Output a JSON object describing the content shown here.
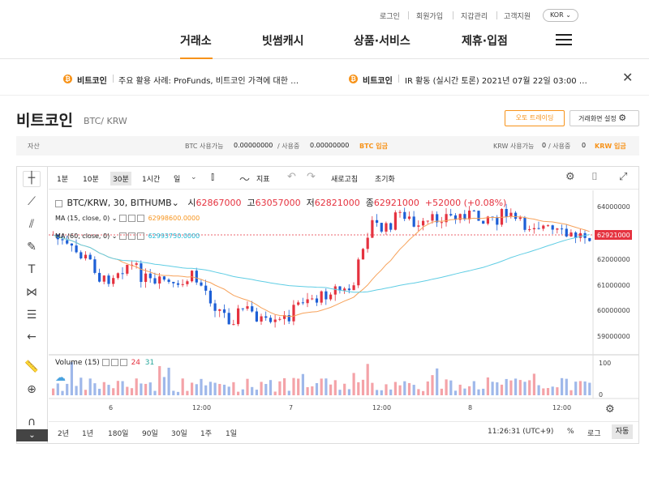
{
  "util_links": [
    "로그인",
    "회원가입",
    "지갑관리",
    "고객지원"
  ],
  "lang": "KOR",
  "nav": [
    "거래소",
    "빗썸캐시",
    "상품·서비스",
    "제휴·입점"
  ],
  "ticker": [
    {
      "coin": "비트코인",
      "text": "주요 활용 사례: ProFunds, 비트코인 가격에 대한 …"
    },
    {
      "coin": "비트코인",
      "text": "IR 활동 (실시간 토론) 2021년 07월 22일 03:00 …"
    }
  ],
  "title": "비트코인",
  "pair": "BTC/ KRW",
  "auto_trading": "오토 트레이딩",
  "screen_settings": "거래화면 설정",
  "assets": {
    "label": "자산",
    "btc_avail_label": "BTC 사용가능",
    "btc_avail": "0.00000000",
    "btc_used_label": "/ 사용중",
    "btc_used": "0.00000000",
    "btc_deposit": "BTC 입금",
    "krw_avail_label": "KRW 사용가능",
    "krw_avail": "0",
    "krw_used_label": "/ 사용중",
    "krw_used": "0",
    "krw_deposit": "KRW 입금"
  },
  "timeframes": [
    "1분",
    "10분",
    "30분",
    "1시간",
    "일"
  ],
  "active_timeframe": "30분",
  "toolbar": {
    "indicator": "지표",
    "refresh": "새로고침",
    "reset": "초기화"
  },
  "legend": {
    "symbol": "BTC/KRW, 30, BITHUMB",
    "o_label": "시",
    "o": "62867000",
    "h_label": "고",
    "h": "63057000",
    "l_label": "저",
    "l": "62821000",
    "c_label": "종",
    "c": "62921000",
    "change": "+52000 (+0.08%)"
  },
  "ma15": {
    "label": "MA (15, close, 0)",
    "value": "62998600.0000"
  },
  "ma60": {
    "label": "MA (60, close, 0)",
    "value": "62993750.0000"
  },
  "volume_legend": {
    "label": "Volume (15)",
    "v1": "24",
    "v2": "31"
  },
  "chart_data": {
    "type": "candlestick",
    "price_ticks": [
      "64000000",
      "63000000",
      "62000000",
      "61000000",
      "60000000",
      "59000000"
    ],
    "current_price": "62921000",
    "volume_ticks": [
      "100",
      "0"
    ],
    "x_ticks": [
      "6",
      "12:00",
      "7",
      "12:00",
      "8",
      "12:00"
    ],
    "colors": {
      "up": "#e5323f",
      "down": "#1d5fd6",
      "ma15": "#f7a25a",
      "ma60": "#5fcde4"
    }
  },
  "ranges": [
    "2년",
    "1년",
    "180일",
    "90일",
    "30일",
    "1주",
    "1일"
  ],
  "clock": "11:26:31 (UTC+9)",
  "bottom_buttons": {
    "percent": "%",
    "log": "로그",
    "auto": "자동"
  }
}
